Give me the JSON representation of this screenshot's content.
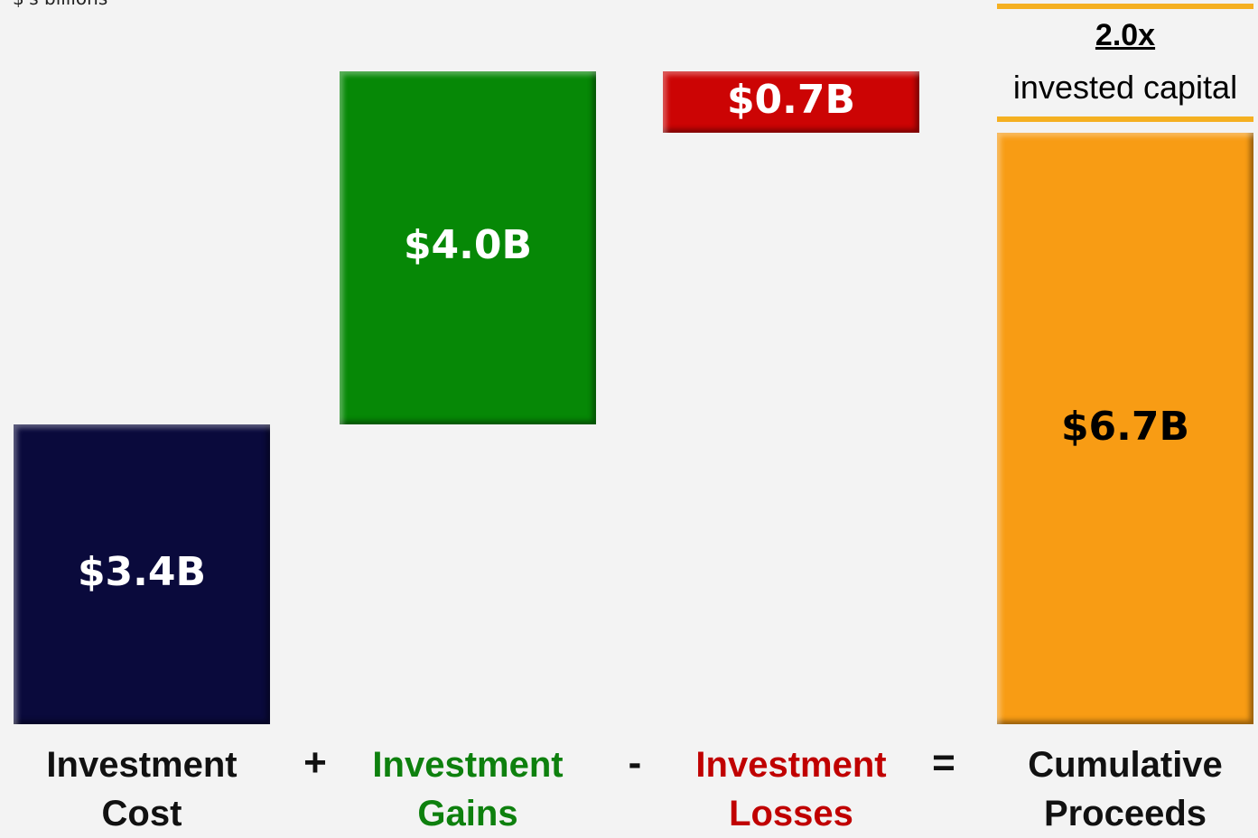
{
  "chart_data": {
    "type": "waterfall",
    "subtitle": "$'s billions",
    "categories": [
      "Investment Cost",
      "Investment Gains",
      "Investment Losses",
      "Cumulative Proceeds"
    ],
    "measure": [
      "absolute",
      "increase",
      "decrease",
      "total"
    ],
    "values": [
      3.4,
      4.0,
      0.7,
      6.7
    ],
    "value_labels": [
      "$3.4B",
      "$4.0B",
      "$0.7B",
      "$6.7B"
    ],
    "colors": [
      "#0a0a3c",
      "#068806",
      "#cc0404",
      "#f89c14"
    ],
    "label_colors": [
      "#ffffff",
      "#ffffff",
      "#ffffff",
      "#000000"
    ],
    "category_colors": [
      "#111111",
      "#0e800e",
      "#c00000",
      "#111111"
    ],
    "operators": [
      "+",
      "-",
      "="
    ],
    "annotation": {
      "multiple": "2.0x",
      "text": "invested capital",
      "color": "#f5b021"
    }
  }
}
